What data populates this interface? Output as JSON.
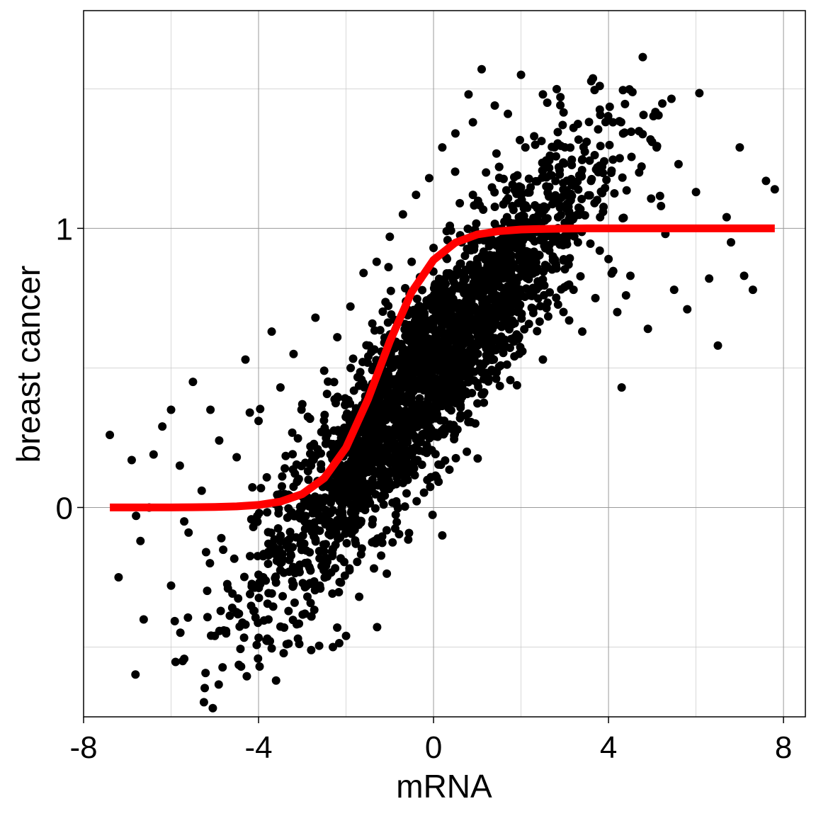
{
  "chart_data": {
    "type": "scatter",
    "title": "",
    "xlabel": "mRNA",
    "ylabel": "breast cancer",
    "xlim": [
      -8,
      8.5
    ],
    "ylim": [
      -0.75,
      1.78
    ],
    "x_ticks": [
      -8,
      -4,
      0,
      4,
      8
    ],
    "x_tick_labels": [
      "-8",
      "-4",
      "0",
      "4",
      "8"
    ],
    "y_ticks": [
      0,
      1
    ],
    "y_tick_labels": [
      "0",
      "1"
    ],
    "x_minor_gridlines": [
      -6,
      -2,
      2,
      6
    ],
    "y_minor_gridlines": [
      -0.5,
      0.5,
      1.5
    ],
    "grid": true,
    "legend": "none",
    "colors": {
      "points": "#000000",
      "fit_line": "#ff0000",
      "grid": "#c8c8c8"
    },
    "series": [
      {
        "type": "scatter",
        "color": "#000000",
        "x": [
          -7.4,
          -7.2,
          -6.9,
          -6.8,
          -6.7,
          -6.5,
          -6.2,
          -6.0,
          -6.0,
          -5.8,
          -5.7,
          -5.5,
          -5.3,
          -5.2,
          -5.1,
          -5.0,
          -4.9,
          -4.7,
          -4.5,
          -4.4,
          -4.3,
          -4.1,
          -4.0,
          -3.8,
          -3.7,
          -3.6,
          -3.5,
          -3.4,
          -3.3,
          -3.2,
          -3.1,
          -3.0,
          -2.9,
          -2.8,
          -2.7,
          -2.6,
          -2.5,
          -2.4,
          -2.3,
          -2.2,
          -2.1,
          -2.0,
          -1.9,
          -1.8,
          -1.7,
          -1.6,
          -1.5,
          -1.4,
          -1.3,
          -1.2,
          -1.1,
          -1.0,
          -0.9,
          -0.8,
          -0.7,
          -0.6,
          -0.5,
          -0.4,
          -0.3,
          -0.2,
          -0.1,
          0.0,
          0.1,
          0.2,
          0.3,
          0.4,
          0.5,
          0.6,
          0.7,
          0.8,
          0.9,
          1.0,
          1.1,
          1.2,
          1.3,
          1.4,
          1.5,
          1.6,
          1.7,
          1.8,
          1.9,
          2.0,
          2.1,
          2.2,
          2.3,
          2.4,
          2.5,
          2.6,
          2.7,
          2.8,
          2.9,
          3.0,
          3.1,
          3.2,
          3.3,
          3.4,
          3.5,
          3.6,
          3.7,
          3.8,
          3.9,
          4.0,
          4.1,
          4.2,
          4.3,
          4.5,
          4.7,
          4.9,
          5.1,
          5.3,
          5.5,
          5.6,
          5.8,
          6.0,
          6.3,
          6.5,
          6.7,
          7.0,
          7.3,
          7.6,
          7.8,
          -1.0,
          0.2,
          1.5,
          2.5,
          3.2,
          -2.8,
          -3.5,
          -4.2,
          0.9,
          1.8,
          -0.5,
          2.2,
          -1.8,
          3.8,
          4.4,
          5.2,
          -5.6,
          -6.4,
          6.8,
          7.1
        ],
        "y": [
          0.26,
          -0.25,
          0.17,
          -0.03,
          -0.12,
          0.0,
          0.29,
          -0.28,
          0.35,
          0.15,
          -0.05,
          0.45,
          0.06,
          -0.16,
          0.35,
          -0.46,
          0.24,
          -0.29,
          0.18,
          -0.57,
          0.53,
          -0.37,
          0.31,
          -0.47,
          0.63,
          -0.62,
          0.43,
          0.14,
          -0.23,
          0.55,
          -0.47,
          0.37,
          0.02,
          -0.39,
          0.68,
          -0.28,
          0.49,
          0.12,
          -0.5,
          0.61,
          0.0,
          -0.46,
          0.72,
          0.33,
          -0.32,
          0.84,
          0.2,
          -0.06,
          0.88,
          0.4,
          0.08,
          0.97,
          0.57,
          0.28,
          1.05,
          0.71,
          0.46,
          1.12,
          0.82,
          0.6,
          1.18,
          0.93,
          0.68,
          1.29,
          0.99,
          0.76,
          1.34,
          1.09,
          0.79,
          1.48,
          1.12,
          0.89,
          1.57,
          1.2,
          0.97,
          1.44,
          1.22,
          0.84,
          1.41,
          1.08,
          0.62,
          1.55,
          1.29,
          0.76,
          1.33,
          1.07,
          0.53,
          1.45,
          1.19,
          0.87,
          1.47,
          1.02,
          0.67,
          1.36,
          0.95,
          0.63,
          1.31,
          1.17,
          0.75,
          1.51,
          1.24,
          0.89,
          1.38,
          0.7,
          0.43,
          0.83,
          1.2,
          0.64,
          1.29,
          0.98,
          0.78,
          1.23,
          0.71,
          1.13,
          0.82,
          0.58,
          1.04,
          1.29,
          0.78,
          1.17,
          1.14,
          0.25,
          -0.1,
          1.22,
          1.48,
          0.78,
          0.15,
          -0.2,
          0.34,
          1.38,
          0.67,
          0.88,
          1.0,
          0.05,
          0.92,
          0.76,
          1.08,
          -0.09,
          0.19,
          0.95,
          0.83
        ]
      },
      {
        "type": "line",
        "color": "#ff0000",
        "x": [
          -7.4,
          -7.0,
          -6.5,
          -6.0,
          -5.5,
          -5.0,
          -4.5,
          -4.0,
          -3.5,
          -3.0,
          -2.5,
          -2.0,
          -1.5,
          -1.0,
          -0.5,
          0.0,
          0.5,
          1.0,
          1.5,
          2.0,
          2.5,
          3.0,
          3.5,
          4.0,
          4.5,
          5.0,
          5.5,
          6.0,
          6.5,
          7.0,
          7.5,
          7.8
        ],
        "y": [
          0.0,
          0.0,
          0.0,
          0.0,
          0.001,
          0.002,
          0.004,
          0.009,
          0.021,
          0.048,
          0.105,
          0.214,
          0.387,
          0.595,
          0.772,
          0.887,
          0.949,
          0.978,
          0.99,
          0.996,
          0.998,
          0.999,
          1.0,
          1.0,
          1.0,
          1.0,
          1.0,
          1.0,
          1.0,
          1.0,
          1.0,
          1.0
        ]
      }
    ]
  }
}
